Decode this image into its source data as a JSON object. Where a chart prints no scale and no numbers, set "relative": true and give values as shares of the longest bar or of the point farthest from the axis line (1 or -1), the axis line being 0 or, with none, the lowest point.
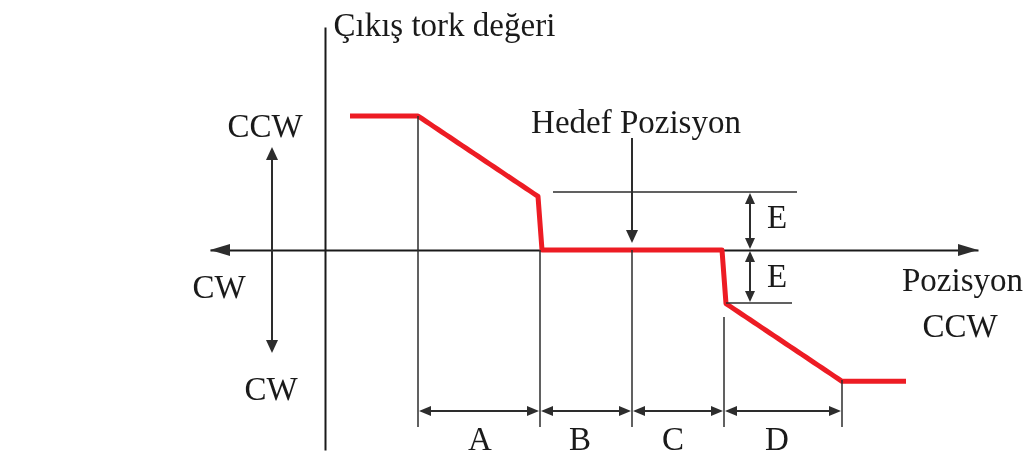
{
  "chart_data": {
    "type": "line",
    "relative": true,
    "xlabel": "Pozisyon",
    "ylabel": "Çıkış tork değeri",
    "annotations": [
      "CCW",
      "CW",
      "CW",
      "CCW",
      "Hedef Pozisyon",
      "E",
      "E",
      "A",
      "B",
      "C",
      "D"
    ],
    "categories": [
      null,
      null,
      null,
      null,
      null,
      null,
      null,
      null,
      null,
      null,
      null,
      null,
      null,
      null,
      null,
      null,
      null,
      null,
      null,
      null,
      null,
      null,
      null,
      null,
      null,
      null,
      null,
      null,
      null,
      null,
      null,
      null,
      null,
      null,
      null,
      null,
      null,
      null,
      null,
      null,
      null,
      null,
      null,
      null,
      null,
      null,
      null,
      null,
      null,
      null,
      null,
      null,
      null,
      null,
      null,
      null,
      null,
      null,
      null,
      null,
      null,
      null,
      null,
      null,
      null,
      null,
      null,
      null,
      null,
      null,
      null,
      null,
      null,
      null,
      null,
      null,
      null,
      null,
      null,
      null,
      null,
      null,
      null,
      null,
      null,
      null,
      null,
      null,
      null,
      null,
      null,
      null,
      null,
      null,
      null,
      null,
      null,
      null,
      null,
      null,
      null,
      null,
      null,
      null,
      null,
      null,
      null,
      null,
      null,
      null,
      null,
      null,
      null,
      null,
      null,
      null,
      null,
      null,
      null,
      null,
      null,
      null,
      null,
      null,
      null,
      null,
      null,
      null,
      null,
      null,
      null,
      null,
      null,
      null,
      null,
      null,
      null,
      null,
      null,
      null,
      null,
      null,
      null,
      null,
      null,
      null,
      null,
      null,
      null,
      null,
      null,
      null,
      null,
      null,
      null,
      null,
      null,
      null,
      null,
      null,
      null,
      null,
      null,
      null,
      null,
      null,
      null,
      null,
      null,
      null,
      null,
      null,
      null,
      null,
      null,
      null,
      null,
      null,
      null,
      null,
      null,
      null,
      null,
      null,
      null,
      null,
      null,
      null,
      null,
      null,
      null,
      null,
      null
    ],
    "series": [
      {
        "color": "#ed1c24",
        "values": [
          null,
          null,
          null,
          null,
          null,
          null,
          null,
          null,
          null,
          null,
          null,
          null,
          null,
          null,
          null,
          null,
          null,
          null,
          null,
          null,
          null,
          null,
          null,
          null,
          null,
          null,
          null,
          null,
          null,
          null,
          null,
          null,
          null,
          null,
          null,
          1,
          1,
          1,
          1,
          1,
          1,
          1,
          1,
          1,
          1,
          1,
          1,
          1,
          1,
          1,
          1,
          1,
          1,
          0.98,
          0.96,
          0.94,
          0.92,
          0.9,
          0.88,
          0.86,
          0.84,
          0.82,
          0.8,
          0.78,
          0.76,
          0.74,
          0.72,
          0.7,
          0.68,
          0.66,
          0.64,
          0.62,
          0.6,
          0.58,
          0.56,
          0.54,
          0.52,
          0.5,
          0.48,
          0.46,
          0.44,
          0.42,
          0.4,
          0,
          0,
          0,
          0,
          0,
          0,
          0,
          0,
          0,
          0,
          0,
          0,
          0,
          0,
          0,
          0,
          0,
          0,
          0,
          0,
          0,
          0,
          0,
          0,
          0,
          0,
          0,
          0,
          0,
          0,
          0,
          0,
          0,
          0,
          0,
          0,
          0,
          0,
          0,
          0,
          0,
          0,
          0,
          0,
          0,
          0,
          -0.4,
          -0.42,
          -0.44,
          -0.46,
          -0.48,
          -0.5,
          -0.52,
          -0.54,
          -0.56,
          -0.58,
          -0.6,
          -0.62,
          -0.64,
          -0.66,
          -0.68,
          -0.7,
          -0.72,
          -0.74,
          -0.76,
          -0.78,
          -0.8,
          -0.82,
          -0.84,
          -0.86,
          -0.88,
          -0.9,
          -0.92,
          -0.94,
          -0.96,
          -0.98,
          -0.98,
          -0.98,
          -0.98,
          -0.98,
          -0.98,
          -0.98,
          -0.98,
          -0.98,
          -0.98,
          -0.98,
          -0.98,
          -0.98,
          -0.98,
          -0.98,
          -0.98,
          -0.98,
          null,
          null,
          null,
          null,
          null,
          null,
          null,
          null,
          null,
          null,
          null,
          null,
          null,
          null,
          null,
          null,
          null,
          null
        ]
      }
    ]
  }
}
